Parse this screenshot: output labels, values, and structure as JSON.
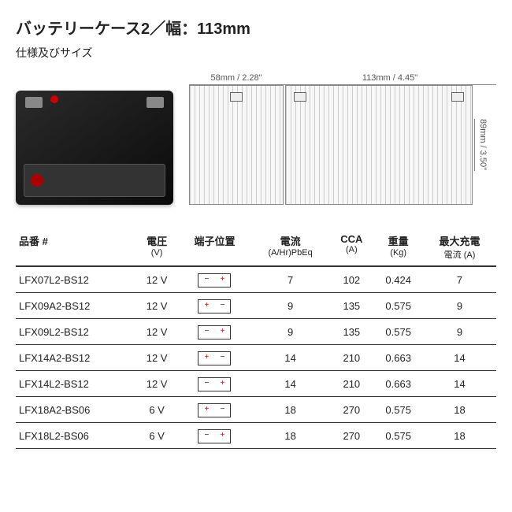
{
  "title": "バッテリーケース2／幅：113mm",
  "subtitle": "仕様及びサイズ",
  "dimensions": {
    "side_width": "58mm / 2.28\"",
    "front_width": "113mm / 4.45\"",
    "height": "89mm / 3.50\""
  },
  "table": {
    "headers": {
      "part_no": "品番 #",
      "voltage": "電圧",
      "voltage_unit": "(V)",
      "terminal": "端子位置",
      "current": "電流",
      "current_unit": "(A/Hr)PbEq",
      "cca": "CCA",
      "cca_unit": "(A)",
      "weight": "重量",
      "weight_unit": "(Kg)",
      "max_charge": "最大充電",
      "max_charge_unit": "電流 (A)"
    },
    "rows": [
      {
        "pn": "LFX07L2-BS12",
        "v": "12 V",
        "term": "neg-pos",
        "cur": "7",
        "cca": "102",
        "w": "0.424",
        "mc": "7"
      },
      {
        "pn": "LFX09A2-BS12",
        "v": "12 V",
        "term": "pos-neg",
        "cur": "9",
        "cca": "135",
        "w": "0.575",
        "mc": "9"
      },
      {
        "pn": "LFX09L2-BS12",
        "v": "12 V",
        "term": "neg-pos",
        "cur": "9",
        "cca": "135",
        "w": "0.575",
        "mc": "9"
      },
      {
        "pn": "LFX14A2-BS12",
        "v": "12 V",
        "term": "pos-neg",
        "cur": "14",
        "cca": "210",
        "w": "0.663",
        "mc": "14"
      },
      {
        "pn": "LFX14L2-BS12",
        "v": "12 V",
        "term": "neg-pos",
        "cur": "14",
        "cca": "210",
        "w": "0.663",
        "mc": "14"
      },
      {
        "pn": "LFX18A2-BS06",
        "v": "6 V",
        "term": "pos-neg",
        "cur": "18",
        "cca": "270",
        "w": "0.575",
        "mc": "18"
      },
      {
        "pn": "LFX18L2-BS06",
        "v": "6 V",
        "term": "neg-pos",
        "cur": "18",
        "cca": "270",
        "w": "0.575",
        "mc": "18"
      }
    ]
  },
  "colors": {
    "accent": "#c00",
    "border": "#333",
    "bg": "#ffffff"
  }
}
